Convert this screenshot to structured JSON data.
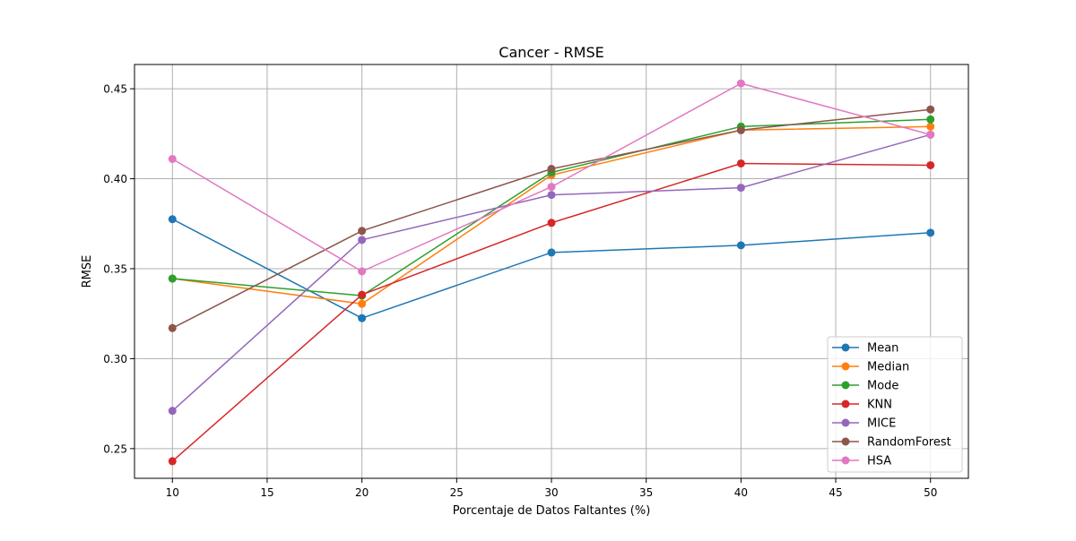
{
  "chart_data": {
    "type": "line",
    "title": "Cancer - RMSE",
    "xlabel": "Porcentaje de Datos Faltantes (%)",
    "ylabel": "RMSE",
    "xlim": [
      8,
      52
    ],
    "ylim": [
      0.2335,
      0.4635
    ],
    "xticks": [
      10,
      15,
      20,
      25,
      30,
      35,
      40,
      45,
      50
    ],
    "yticks": [
      0.25,
      0.3,
      0.35,
      0.4,
      0.45
    ],
    "ytick_labels": [
      "0.25",
      "0.30",
      "0.35",
      "0.40",
      "0.45"
    ],
    "grid": true,
    "legend_position": "lower right",
    "x": [
      10,
      20,
      30,
      40,
      50
    ],
    "series": [
      {
        "name": "Mean",
        "color": "#1f77b4",
        "values": [
          0.3775,
          0.3225,
          0.359,
          0.363,
          0.37
        ]
      },
      {
        "name": "Median",
        "color": "#ff7f0e",
        "values": [
          0.3445,
          0.3305,
          0.402,
          0.427,
          0.429
        ]
      },
      {
        "name": "Mode",
        "color": "#2ca02c",
        "values": [
          0.3445,
          0.335,
          0.4035,
          0.429,
          0.433
        ]
      },
      {
        "name": "KNN",
        "color": "#d62728",
        "values": [
          0.243,
          0.3355,
          0.3755,
          0.4085,
          0.4075
        ]
      },
      {
        "name": "MICE",
        "color": "#9467bd",
        "values": [
          0.271,
          0.366,
          0.391,
          0.395,
          0.4245
        ]
      },
      {
        "name": "RandomForest",
        "color": "#8c564b",
        "values": [
          0.317,
          0.371,
          0.4055,
          0.427,
          0.4385
        ]
      },
      {
        "name": "HSA",
        "color": "#e377c2",
        "values": [
          0.411,
          0.3485,
          0.3955,
          0.453,
          0.4245
        ]
      }
    ]
  }
}
